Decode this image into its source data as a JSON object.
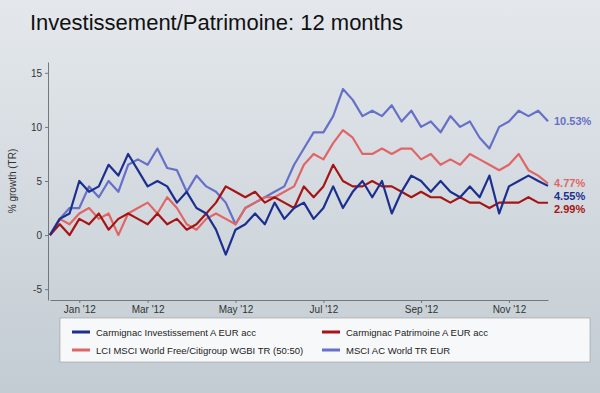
{
  "chart_data": {
    "type": "line",
    "title": "Investissement/Patrimoine: 12 months",
    "ylabel": "% growth (TR)",
    "categories": [
      null,
      null,
      null,
      "Jan '12",
      null,
      null,
      null,
      null,
      null,
      null,
      "Mar '12",
      null,
      null,
      null,
      null,
      null,
      null,
      null,
      null,
      "May '12",
      null,
      null,
      null,
      null,
      null,
      null,
      null,
      null,
      "Jul '12",
      null,
      null,
      null,
      null,
      null,
      null,
      null,
      null,
      null,
      "Sep '12",
      null,
      null,
      null,
      null,
      null,
      null,
      null,
      null,
      "Nov '12",
      null,
      null,
      null,
      null
    ],
    "ylim": [
      -6,
      16
    ],
    "yticks": [
      -5,
      0,
      5,
      10,
      15
    ],
    "grid": false,
    "legend": "bottom",
    "data_labels": true,
    "series": [
      {
        "name": "Carmignac Investissement A EUR acc",
        "color": "#1c2f8f",
        "values": [
          0,
          1.5,
          2,
          5,
          4,
          4.5,
          6.5,
          5.5,
          7.5,
          6,
          4.5,
          5,
          4.5,
          3,
          4,
          2.5,
          2,
          0.5,
          -1.8,
          0.5,
          1,
          2,
          1,
          3,
          1.5,
          2.5,
          3,
          1.5,
          2.5,
          4.5,
          2.5,
          4,
          5,
          3.5,
          5,
          2,
          4,
          5.5,
          5,
          4,
          5,
          4,
          3.5,
          4.5,
          3.5,
          5.5,
          2,
          4.5,
          5,
          5.5,
          5,
          4.55
        ],
        "value_labels": [
          null,
          null,
          null,
          null,
          null,
          null,
          null,
          null,
          null,
          null,
          null,
          null,
          null,
          null,
          null,
          null,
          null,
          null,
          null,
          null,
          null,
          null,
          null,
          null,
          null,
          null,
          null,
          null,
          null,
          null,
          null,
          null,
          null,
          null,
          null,
          null,
          null,
          null,
          null,
          null,
          null,
          null,
          null,
          null,
          null,
          null,
          null,
          null,
          null,
          null,
          null,
          "4.55%"
        ]
      },
      {
        "name": "Carmignac Patrimoine A EUR acc",
        "color": "#a51515",
        "values": [
          0,
          1,
          0,
          1.5,
          1,
          2,
          0.5,
          1.5,
          2,
          1.5,
          1,
          2,
          1,
          1.5,
          0.5,
          1,
          2,
          3,
          4.5,
          4,
          3.5,
          4,
          3,
          3.5,
          3,
          2.5,
          4.5,
          3.5,
          4.5,
          6.5,
          5,
          4.5,
          4.5,
          5,
          4.5,
          4.5,
          4,
          3.5,
          4,
          3.5,
          3.5,
          3,
          3.5,
          3,
          3,
          2.5,
          3,
          3,
          3,
          3.5,
          3,
          2.99
        ],
        "value_labels": [
          null,
          null,
          null,
          null,
          null,
          null,
          null,
          null,
          null,
          null,
          null,
          null,
          null,
          null,
          null,
          null,
          null,
          null,
          null,
          null,
          null,
          null,
          null,
          null,
          null,
          null,
          null,
          null,
          null,
          null,
          null,
          null,
          null,
          null,
          null,
          null,
          null,
          null,
          null,
          null,
          null,
          null,
          null,
          null,
          null,
          null,
          null,
          null,
          null,
          null,
          null,
          "2.99%"
        ]
      },
      {
        "name": "LCI MSCI World Free/Citigroup WGBI TR (50:50)",
        "color": "#e06666",
        "values": [
          0,
          1.5,
          1,
          2,
          2.5,
          1.5,
          2,
          0,
          2,
          2.5,
          3,
          2,
          3.5,
          2.5,
          1,
          0.5,
          1.5,
          2,
          1.5,
          1,
          2.5,
          3,
          3.5,
          3.5,
          4,
          4.5,
          6.5,
          7.5,
          7,
          8.5,
          9.7,
          9,
          7.5,
          7.5,
          8,
          7.5,
          8,
          8,
          7,
          7.5,
          6.5,
          7,
          6.5,
          7.5,
          7,
          6.5,
          6,
          6.5,
          7.5,
          6,
          5.5,
          4.77
        ],
        "value_labels": [
          null,
          null,
          null,
          null,
          null,
          null,
          null,
          null,
          null,
          null,
          null,
          null,
          null,
          null,
          null,
          null,
          null,
          null,
          null,
          null,
          null,
          null,
          null,
          null,
          null,
          null,
          null,
          null,
          null,
          null,
          null,
          null,
          null,
          null,
          null,
          null,
          null,
          null,
          null,
          null,
          null,
          null,
          null,
          null,
          null,
          null,
          null,
          null,
          null,
          null,
          null,
          "4.77%"
        ]
      },
      {
        "name": "MSCI AC World TR EUR",
        "color": "#6670c8",
        "values": [
          0,
          1.5,
          2.5,
          2.5,
          4.5,
          3.5,
          5,
          4,
          6.5,
          7,
          6.5,
          8,
          6.2,
          6,
          4,
          5.5,
          4.5,
          4,
          3,
          1,
          2.5,
          3,
          3.5,
          4,
          4.5,
          6.5,
          8,
          9.5,
          9.5,
          11,
          13.5,
          12.5,
          11,
          11.5,
          11,
          12,
          10.5,
          11.5,
          10,
          10.5,
          9.5,
          11,
          10,
          10.5,
          9,
          8,
          10,
          10.5,
          11.5,
          11,
          11.5,
          10.53
        ],
        "value_labels": [
          null,
          null,
          null,
          null,
          null,
          null,
          null,
          null,
          null,
          null,
          null,
          null,
          null,
          null,
          null,
          null,
          null,
          null,
          null,
          null,
          null,
          null,
          null,
          null,
          null,
          null,
          null,
          null,
          null,
          null,
          null,
          null,
          null,
          null,
          null,
          null,
          null,
          null,
          null,
          null,
          null,
          null,
          null,
          null,
          null,
          null,
          null,
          null,
          null,
          null,
          null,
          "10.53%"
        ]
      }
    ]
  }
}
